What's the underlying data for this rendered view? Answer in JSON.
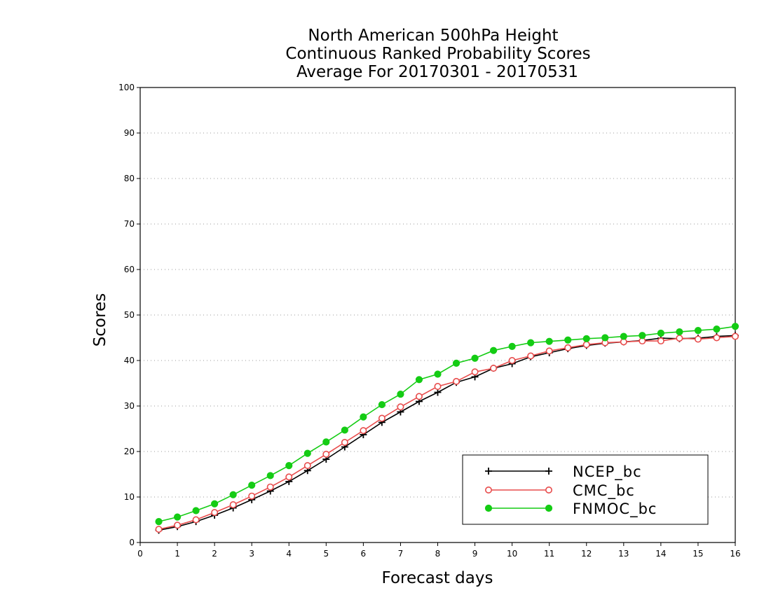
{
  "chart_data": {
    "type": "line",
    "title_lines": [
      "North American 500hPa Height",
      "Continuous Ranked Probability Scores",
      "Average For 20170301 - 20170531"
    ],
    "xlabel": "Forecast days",
    "ylabel": "Scores",
    "xlim": [
      0,
      16
    ],
    "ylim": [
      0,
      100
    ],
    "xticks": [
      "0",
      "1",
      "2",
      "3",
      "4",
      "5",
      "6",
      "7",
      "8",
      "9",
      "10",
      "11",
      "12",
      "13",
      "14",
      "15",
      "16"
    ],
    "yticks": [
      "0",
      "10",
      "20",
      "30",
      "40",
      "50",
      "60",
      "70",
      "80",
      "90",
      "100"
    ],
    "grid": "horizontal dotted",
    "legend_position": "bottom-right",
    "x": [
      0.5,
      1,
      1.5,
      2,
      2.5,
      3,
      3.5,
      4,
      4.5,
      5,
      5.5,
      6,
      6.5,
      7,
      7.5,
      8,
      8.5,
      9,
      9.5,
      10,
      10.5,
      11,
      11.5,
      12,
      12.5,
      13,
      13.5,
      14,
      14.5,
      15,
      15.5,
      16
    ],
    "series": [
      {
        "name": "NCEP_bc",
        "color": "#000000",
        "marker": "plus",
        "values": [
          2.7,
          3.5,
          4.6,
          6.0,
          7.6,
          9.4,
          11.3,
          13.4,
          15.8,
          18.3,
          21.0,
          23.7,
          26.4,
          28.7,
          31.0,
          33.0,
          35.2,
          36.4,
          38.3,
          39.3,
          40.8,
          41.7,
          42.6,
          43.3,
          43.8,
          44.1,
          44.4,
          44.9,
          44.8,
          44.9,
          45.3,
          45.5
        ]
      },
      {
        "name": "CMC_bc",
        "color": "#e84c4c",
        "marker": "open-circle",
        "values": [
          2.9,
          3.8,
          5.0,
          6.6,
          8.3,
          10.2,
          12.2,
          14.4,
          16.9,
          19.4,
          22.0,
          24.6,
          27.3,
          29.8,
          32.1,
          34.3,
          35.4,
          37.5,
          38.3,
          40.0,
          41.0,
          42.1,
          42.8,
          43.5,
          43.9,
          44.1,
          44.3,
          44.3,
          44.9,
          44.7,
          45.0,
          45.3
        ]
      },
      {
        "name": "FNMOC_bc",
        "color": "#14cc14",
        "marker": "filled-circle",
        "values": [
          4.6,
          5.6,
          7.0,
          8.5,
          10.5,
          12.6,
          14.7,
          16.9,
          19.6,
          22.1,
          24.7,
          27.6,
          30.3,
          32.6,
          35.8,
          37.0,
          39.4,
          40.5,
          42.2,
          43.1,
          43.9,
          44.2,
          44.5,
          44.8,
          45.0,
          45.3,
          45.5,
          46.0,
          46.3,
          46.6,
          46.9,
          47.5
        ]
      }
    ]
  }
}
